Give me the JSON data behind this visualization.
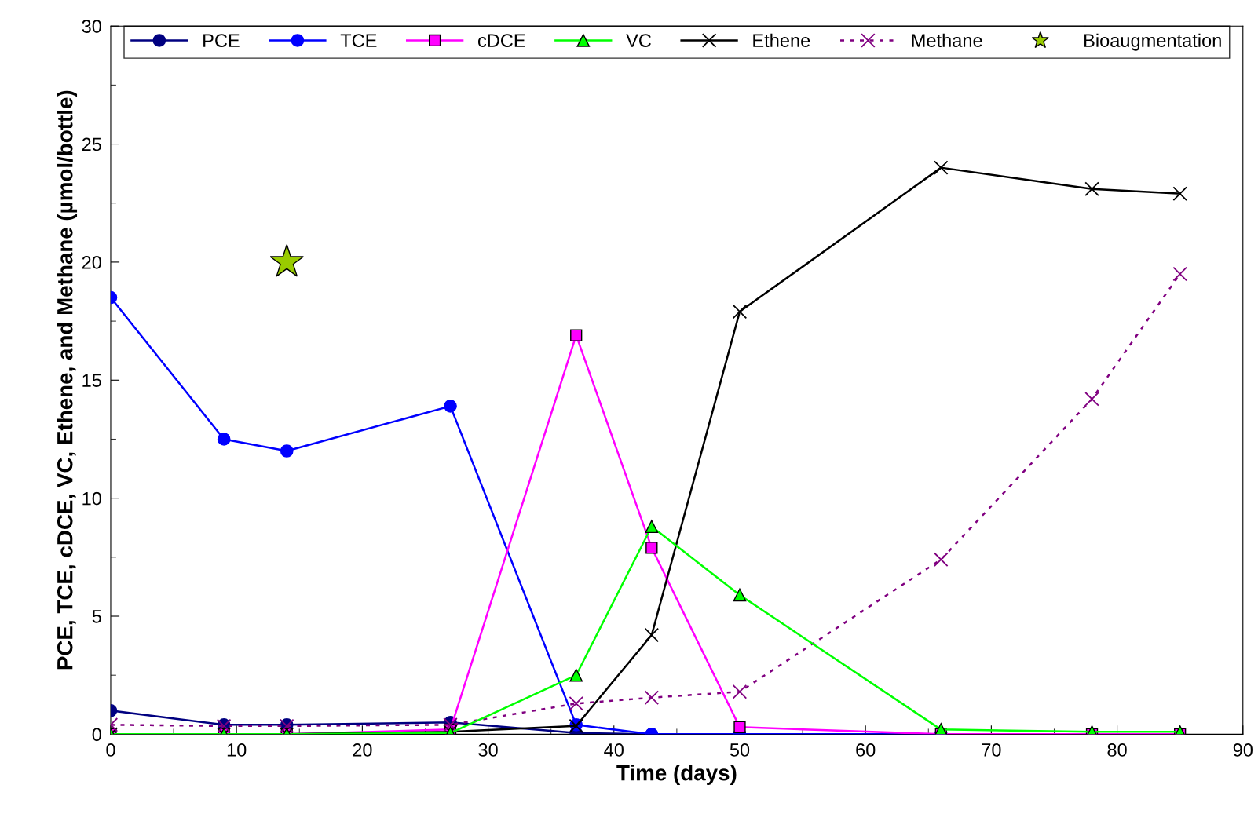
{
  "chart_data": {
    "type": "line",
    "xlabel": "Time (days)",
    "ylabel": "PCE, TCE, cDCE, VC, Ethene, and Methane (µmol/bottle)",
    "x": [
      0,
      9,
      14,
      27,
      37,
      43,
      50,
      66,
      78,
      85
    ],
    "series": [
      {
        "name": "PCE",
        "color": "#000080",
        "marker": "circle",
        "values": [
          1.0,
          0.4,
          0.4,
          0.5,
          0.05,
          0,
          0,
          0,
          null,
          null
        ]
      },
      {
        "name": "TCE",
        "color": "#0000ff",
        "marker": "circle",
        "values": [
          18.5,
          12.5,
          12.0,
          13.9,
          0.4,
          0,
          0,
          0,
          null,
          null
        ]
      },
      {
        "name": "cDCE",
        "color": "#ff00ff",
        "marker": "square",
        "values": [
          0,
          0,
          0,
          0.2,
          16.9,
          7.9,
          0.3,
          0,
          0,
          0
        ]
      },
      {
        "name": "VC",
        "color": "#00ff00",
        "marker": "triangle",
        "values": [
          0,
          0,
          0,
          0.05,
          2.5,
          8.8,
          5.9,
          0.2,
          0.1,
          0.1
        ]
      },
      {
        "name": "Ethene",
        "color": "#000000",
        "marker": "cross",
        "values": [
          0,
          0,
          0,
          0.1,
          0.35,
          4.2,
          17.9,
          24.0,
          23.1,
          22.9
        ]
      },
      {
        "name": "Methane",
        "color": "#800080",
        "marker": "cross",
        "line_style": "dotted",
        "values": [
          0.4,
          0.35,
          0.35,
          0.4,
          1.3,
          1.55,
          1.8,
          7.4,
          14.2,
          19.5
        ]
      },
      {
        "name": "Bioaugmentation",
        "type": "scatter",
        "color": "#99cc00",
        "marker": "star",
        "x": [
          14
        ],
        "values": [
          20
        ]
      }
    ],
    "xlim": [
      0,
      90
    ],
    "xticks": [
      0,
      10,
      20,
      30,
      40,
      50,
      60,
      70,
      80,
      90
    ],
    "ylim": [
      0,
      30
    ],
    "yticks": [
      0,
      5,
      10,
      15,
      20,
      25,
      30
    ],
    "grid": false,
    "legend": "top"
  }
}
